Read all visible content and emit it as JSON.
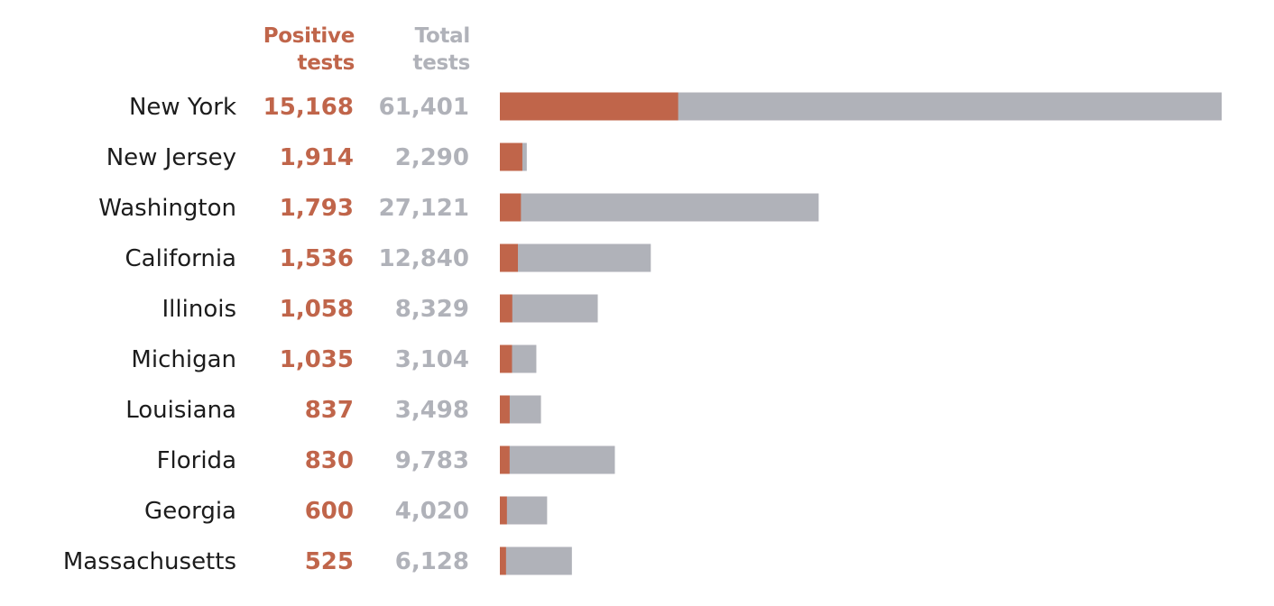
{
  "headers": {
    "positive_line1": "Positive",
    "positive_line2": "tests",
    "total_line1": "Total",
    "total_line2": "tests"
  },
  "colors": {
    "positive": "#c0654a",
    "total": "#b0b2b9",
    "label": "#1c1c1c"
  },
  "chart_data": {
    "type": "bar",
    "orientation": "horizontal",
    "stacked_overlay": true,
    "categories": [
      "New York",
      "New Jersey",
      "Washington",
      "California",
      "Illinois",
      "Michigan",
      "Louisiana",
      "Florida",
      "Georgia",
      "Massachusetts"
    ],
    "series": [
      {
        "name": "Positive tests",
        "values": [
          15168,
          1914,
          1793,
          1536,
          1058,
          1035,
          837,
          830,
          600,
          525
        ]
      },
      {
        "name": "Total tests",
        "values": [
          61401,
          2290,
          27121,
          12840,
          8329,
          3104,
          3498,
          9783,
          4020,
          6128
        ]
      }
    ],
    "value_labels": {
      "positive": [
        "15,168",
        "1,914",
        "1,793",
        "1,536",
        "1,058",
        "1,035",
        "837",
        "830",
        "600",
        "525"
      ],
      "total": [
        "61,401",
        "2,290",
        "27,121",
        "12,840",
        "8,329",
        "3,104",
        "3,498",
        "9,783",
        "4,020",
        "6,128"
      ]
    },
    "xlim": [
      0,
      61401
    ],
    "grid": false,
    "legend": "column headers above values"
  }
}
